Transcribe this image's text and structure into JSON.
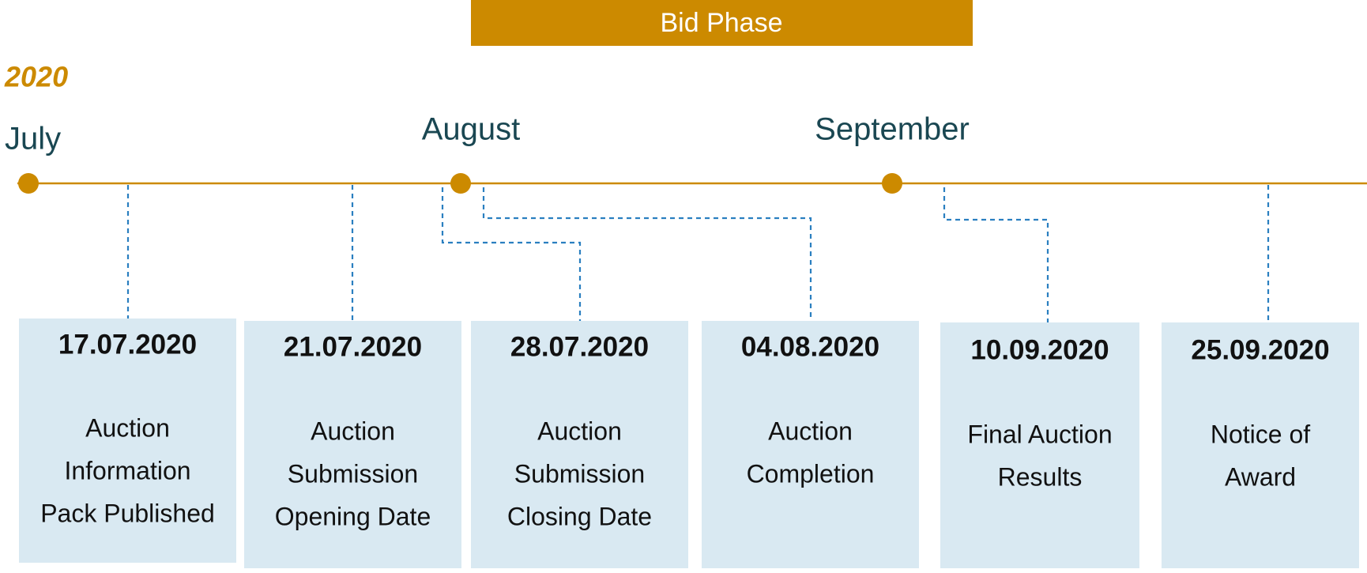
{
  "phase": "Bid Phase",
  "year": "2020",
  "months": [
    "July",
    "August",
    "September"
  ],
  "events": [
    {
      "date": "17.07.2020",
      "label": [
        "Auction",
        "Information",
        "Pack Published"
      ]
    },
    {
      "date": "21.07.2020",
      "label": [
        "Auction",
        "Submission",
        "Opening Date"
      ]
    },
    {
      "date": "28.07.2020",
      "label": [
        "Auction",
        "Submission",
        "Closing Date"
      ]
    },
    {
      "date": "04.08.2020",
      "label": [
        "Auction",
        "Completion"
      ]
    },
    {
      "date": "10.09.2020",
      "label": [
        "Final Auction",
        "Results"
      ]
    },
    {
      "date": "25.09.2020",
      "label": [
        "Notice of",
        "Award"
      ]
    }
  ]
}
